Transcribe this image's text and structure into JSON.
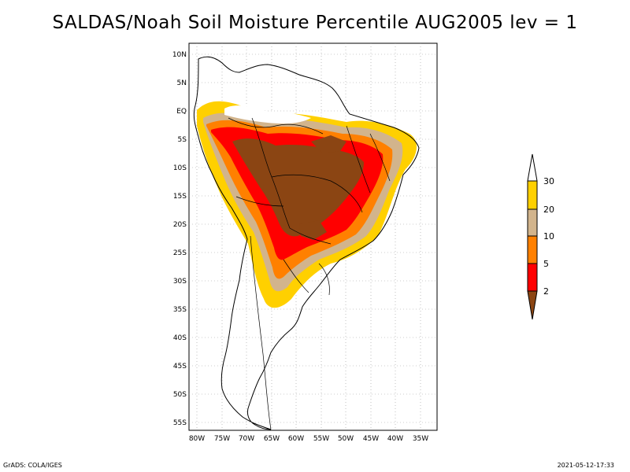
{
  "title": "SALDAS/Noah Soil Moisture Percentile AUG2005 lev = 1",
  "map": {
    "lon_range": [
      -80,
      -30
    ],
    "lat_range": [
      -56,
      12
    ],
    "lat_ticks": [
      "10N",
      "5N",
      "EQ",
      "5S",
      "10S",
      "15S",
      "20S",
      "25S",
      "30S",
      "35S",
      "40S",
      "45S",
      "50S",
      "55S"
    ],
    "lon_ticks": [
      "80W",
      "75W",
      "70W",
      "65W",
      "60W",
      "55W",
      "50W",
      "45W",
      "40W",
      "35W"
    ],
    "grid": true
  },
  "colorbar": {
    "labels": [
      "30",
      "20",
      "10",
      "5",
      "2"
    ],
    "colors": {
      "over30": "#ffffff",
      "c20_30": "#ffd000",
      "c10_20": "#d2b48c",
      "c5_10": "#ff8000",
      "c2_5": "#ff0000",
      "under2": "#8b4513"
    }
  },
  "footer": {
    "left": "GrADS: COLA/IGES",
    "right": "2021-05-12-17:33"
  }
}
